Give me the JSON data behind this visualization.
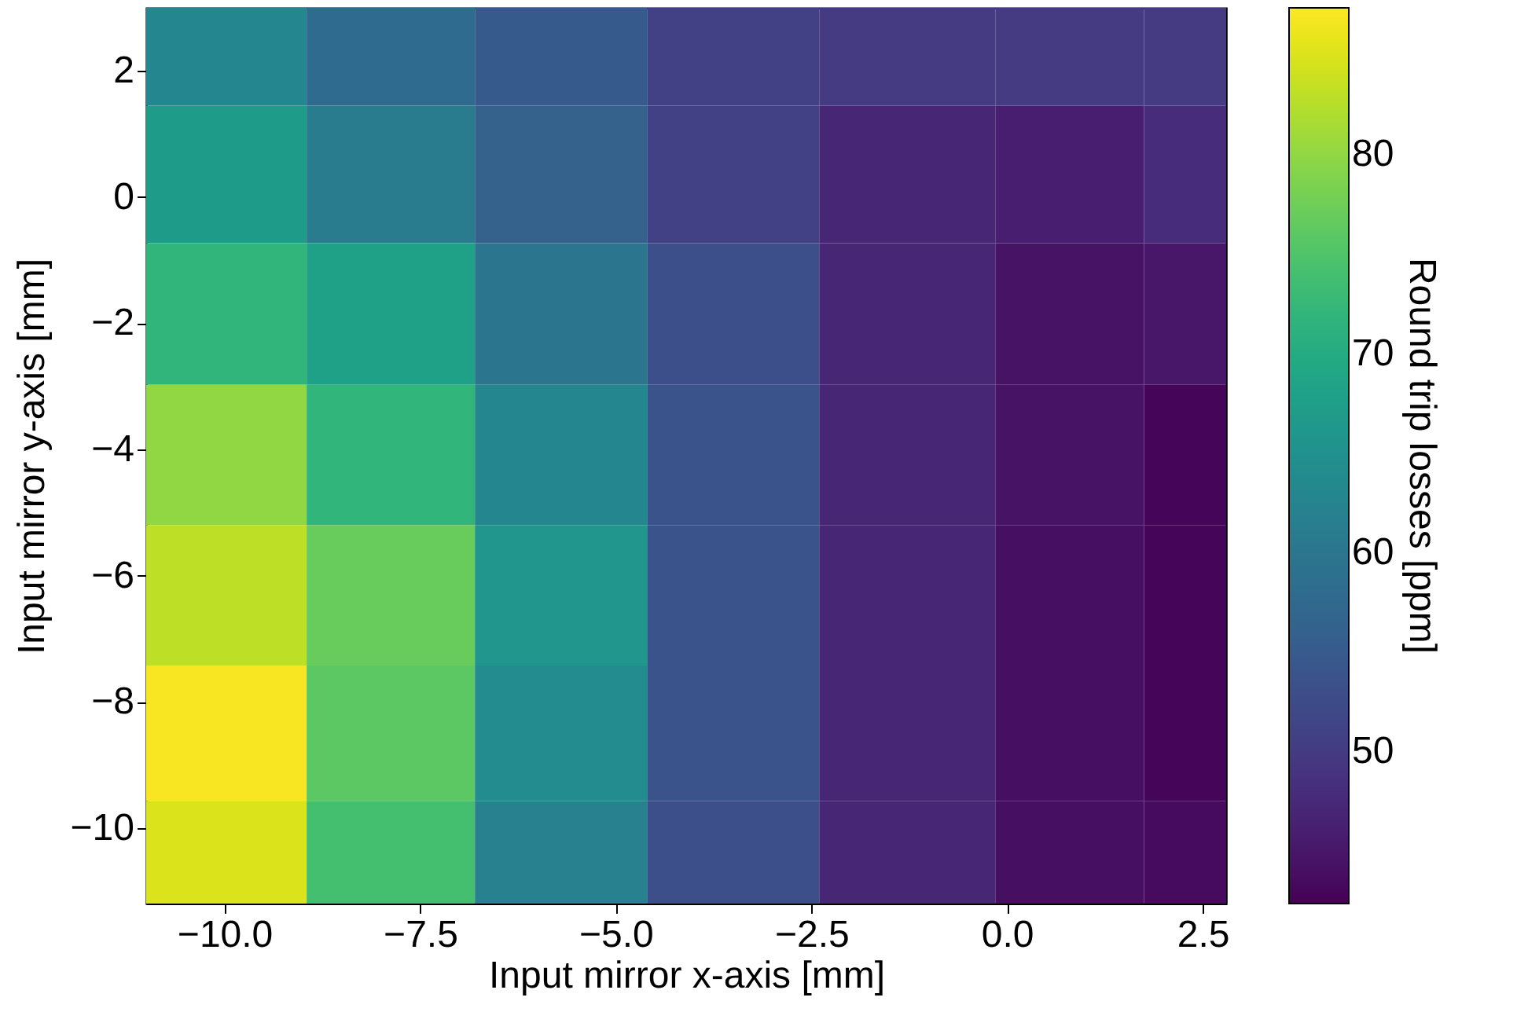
{
  "chart_data": {
    "type": "heatmap",
    "xlabel": "Input mirror x-axis [mm]",
    "ylabel": "Input mirror y-axis [mm]",
    "clabel": "Round trip losses [ppm]",
    "x": [
      -10,
      -7.9,
      -5.7,
      -3.5,
      -1.3,
      1,
      2.5
    ],
    "y": [
      2.5,
      0.4,
      -1.86,
      -4.09,
      -6.31,
      -8.54,
      -10.6
    ],
    "cells": [
      [
        63,
        58,
        55,
        51,
        50,
        50,
        50
      ],
      [
        67,
        61,
        56,
        51,
        47,
        46,
        48
      ],
      [
        72,
        68,
        60,
        53,
        47,
        44.5,
        45
      ],
      [
        80,
        72,
        63,
        54,
        47,
        44.5,
        43
      ],
      [
        83,
        77,
        66,
        54,
        47,
        44,
        43
      ],
      [
        87,
        76,
        64,
        54,
        47,
        44,
        43
      ],
      [
        85,
        74,
        62,
        53,
        47,
        44,
        43.5
      ]
    ],
    "xlim": [
      -11,
      2.8
    ],
    "ylim": [
      -11.2,
      3
    ],
    "xticks": [
      {
        "value": -10,
        "label": "−10.0"
      },
      {
        "value": -7.5,
        "label": "−7.5"
      },
      {
        "value": -5,
        "label": "−5.0"
      },
      {
        "value": -2.5,
        "label": "−2.5"
      },
      {
        "value": 0,
        "label": "0.0"
      },
      {
        "value": 2.5,
        "label": "2.5"
      }
    ],
    "yticks": [
      2,
      0,
      -2,
      -4,
      -6,
      -8,
      -10
    ],
    "clim": [
      42.4,
      87.4
    ],
    "cticks": [
      50,
      60,
      70,
      80
    ]
  }
}
